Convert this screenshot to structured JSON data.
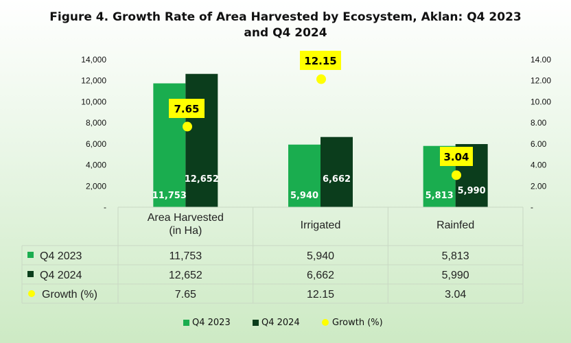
{
  "title_line1": "Figure 4. Growth Rate of Area Harvested by Ecosystem, Aklan: Q4 2023",
  "title_line2": "and Q4 2024",
  "colors": {
    "q4_2023": "#1aad4f",
    "q4_2024": "#0b3d1c",
    "growth": "#ffff00",
    "label_box": "#ffff00"
  },
  "chart_data": {
    "type": "bar",
    "categories": [
      "Area Harvested (in Ha)",
      "Irrigated",
      "Rainfed"
    ],
    "category_lines": [
      [
        "Area Harvested",
        "(in Ha)"
      ],
      [
        "Irrigated"
      ],
      [
        "Rainfed"
      ]
    ],
    "series": [
      {
        "name": "Q4 2023",
        "values": [
          11753,
          5940,
          5813
        ],
        "labels": [
          "11,753",
          "5,940",
          "5,813"
        ]
      },
      {
        "name": "Q4 2024",
        "values": [
          12652,
          6662,
          5990
        ],
        "labels": [
          "12,652",
          "6,662",
          "5,990"
        ]
      }
    ],
    "growth_series": {
      "name": "Growth (%)",
      "values": [
        7.65,
        12.15,
        3.04
      ],
      "labels": [
        "7.65",
        "12.15",
        "3.04"
      ]
    },
    "left_axis": {
      "ylim": [
        0,
        14000
      ],
      "ticks": [
        "-",
        "2,000",
        "4,000",
        "6,000",
        "8,000",
        "10,000",
        "12,000",
        "14,000"
      ]
    },
    "right_axis": {
      "ylim": [
        0,
        14
      ],
      "ticks": [
        "-",
        "2.00",
        "4.00",
        "6.00",
        "8.00",
        "10.00",
        "12.00",
        "14.00"
      ]
    },
    "table": [
      {
        "legend": "Q4 2023",
        "values": [
          "11,753",
          "5,940",
          "5,813"
        ]
      },
      {
        "legend": "Q4 2024",
        "values": [
          "12,652",
          "6,662",
          "5,990"
        ]
      },
      {
        "legend": "Growth (%)",
        "values": [
          "7.65",
          "12.15",
          "3.04"
        ]
      }
    ],
    "legend": {
      "position": "bottom",
      "items": [
        "Q4 2023",
        "Q4 2024",
        "Growth (%)"
      ]
    }
  }
}
